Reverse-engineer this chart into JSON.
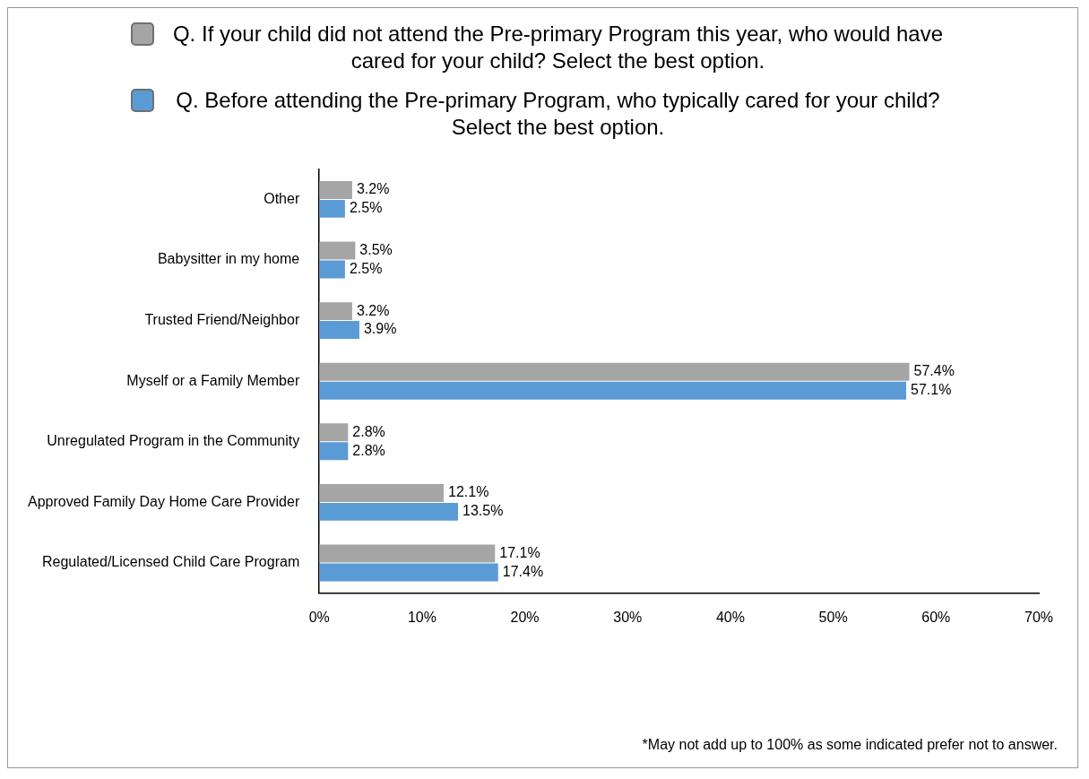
{
  "chart_data": {
    "type": "bar",
    "orientation": "horizontal",
    "legend": "top",
    "grid": false,
    "categories": [
      "Other",
      "Babysitter in my home",
      "Trusted Friend/Neighbor",
      "Myself or a Family Member",
      "Unregulated Program in the Community",
      "Approved Family Day Home Care Provider",
      "Regulated/Licensed Child Care Program"
    ],
    "series": [
      {
        "name": "Q. If your child did not attend the Pre-primary Program this year, who would have cared for your child? Select the best option.",
        "color": "#a5a5a5",
        "values": [
          3.2,
          3.5,
          3.2,
          57.4,
          2.8,
          12.1,
          17.1
        ],
        "value_labels": [
          "3.2%",
          "3.5%",
          "3.2%",
          "57.4%",
          "2.8%",
          "12.1%",
          "17.1%"
        ]
      },
      {
        "name": "Q. Before attending the Pre-primary Program, who typically cared for your child? Select the best option.",
        "color": "#5b9bd5",
        "values": [
          2.5,
          2.5,
          3.9,
          57.1,
          2.8,
          13.5,
          17.4
        ],
        "value_labels": [
          "2.5%",
          "2.5%",
          "3.9%",
          "57.1%",
          "2.8%",
          "13.5%",
          "17.4%"
        ]
      }
    ],
    "xlim": [
      0,
      70
    ],
    "xticks": [
      {
        "value": 0,
        "label": "0%"
      },
      {
        "value": 10,
        "label": "10%"
      },
      {
        "value": 20,
        "label": "20%"
      },
      {
        "value": 30,
        "label": "30%"
      },
      {
        "value": 40,
        "label": "40%"
      },
      {
        "value": 50,
        "label": "50%"
      },
      {
        "value": 60,
        "label": "60%"
      },
      {
        "value": 70,
        "label": "70%"
      }
    ],
    "annotations": [
      "*May not add up to 100% as some indicated prefer not to answer."
    ]
  }
}
